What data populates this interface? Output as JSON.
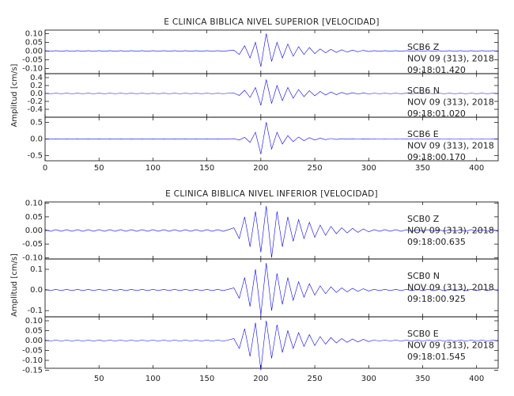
{
  "chart_data": [
    {
      "type": "line",
      "title": "E CLINICA BIBLICA NIVEL SUPERIOR [VELOCIDAD]",
      "ylabel": "Amplitud [cm/s]",
      "xlim": [
        0,
        420
      ],
      "xticks": [
        0,
        50,
        100,
        150,
        200,
        250,
        300,
        350,
        400
      ],
      "x": [
        0,
        5,
        10,
        15,
        20,
        25,
        30,
        35,
        40,
        45,
        50,
        55,
        60,
        65,
        70,
        75,
        80,
        85,
        90,
        95,
        100,
        105,
        110,
        115,
        120,
        125,
        130,
        135,
        140,
        145,
        150,
        155,
        160,
        165,
        170,
        175,
        180,
        185,
        190,
        195,
        200,
        205,
        210,
        215,
        220,
        225,
        230,
        235,
        240,
        245,
        250,
        255,
        260,
        265,
        270,
        275,
        280,
        285,
        290,
        295,
        300,
        305,
        310,
        315,
        320,
        325,
        330,
        335,
        340,
        345,
        350,
        355,
        360,
        365,
        370,
        375,
        380,
        385,
        390,
        395,
        400,
        405,
        410,
        415,
        420
      ],
      "panels": [
        {
          "ylim": [
            -0.13,
            0.12
          ],
          "yticks": [
            {
              "value": 0.1,
              "label": "0.10"
            },
            0.05,
            {
              "value": 0,
              "label": "0.00"
            },
            -0.05,
            {
              "value": -0.1,
              "label": "-0.10"
            }
          ],
          "annotations": [
            "SCB6   Z",
            "NOV 09 (313), 2018",
            "09:18:01.420"
          ],
          "series": [
            {
              "color": "#0000ff",
              "values": [
                0.002,
                -0.002,
                0.002,
                -0.002,
                0.002,
                -0.002,
                0.002,
                -0.002,
                0.002,
                -0.002,
                0.002,
                -0.002,
                0.002,
                -0.002,
                0.002,
                -0.002,
                0.002,
                -0.002,
                0.002,
                -0.002,
                0.002,
                -0.002,
                0.002,
                -0.002,
                0.002,
                -0.002,
                0.002,
                -0.002,
                0.002,
                -0.002,
                0.002,
                -0.002,
                0.002,
                -0.002,
                0.002,
                0.005,
                -0.02,
                0.03,
                -0.04,
                0.05,
                -0.09,
                0.1,
                -0.06,
                0.05,
                -0.04,
                0.04,
                -0.03,
                0.025,
                -0.02,
                0.02,
                -0.015,
                0.012,
                -0.01,
                0.01,
                -0.008,
                0.007,
                -0.006,
                0.005,
                -0.004,
                0.004,
                -0.003,
                0.002,
                -0.002,
                0.002,
                -0.002,
                0.002,
                -0.002,
                0.002,
                -0.002,
                0.002,
                -0.002,
                0.002,
                -0.002,
                0.002,
                -0.002,
                0.002,
                -0.002,
                0.002,
                -0.002,
                0.002,
                -0.002,
                0.002,
                -0.002,
                0.002,
                -0.002
              ]
            }
          ]
        },
        {
          "ylim": [
            -0.6,
            0.5
          ],
          "yticks": [
            0.4,
            0.2,
            {
              "value": 0,
              "label": "0.0"
            },
            -0.2,
            -0.4
          ],
          "annotations": [
            "SCB6   N",
            "NOV 09 (313), 2018",
            "09:18:01.020"
          ],
          "series": [
            {
              "color": "#0000ff",
              "values": [
                0.005,
                -0.005,
                0.005,
                -0.005,
                0.005,
                -0.005,
                0.005,
                -0.005,
                0.005,
                -0.005,
                0.005,
                -0.005,
                0.005,
                -0.005,
                0.005,
                -0.005,
                0.005,
                -0.005,
                0.005,
                -0.005,
                0.005,
                -0.005,
                0.005,
                -0.005,
                0.005,
                -0.005,
                0.005,
                -0.005,
                0.005,
                -0.005,
                0.005,
                -0.005,
                0.005,
                -0.005,
                0.005,
                0.01,
                -0.05,
                0.08,
                -0.1,
                0.15,
                -0.3,
                0.35,
                -0.25,
                0.2,
                -0.18,
                0.15,
                -0.12,
                0.1,
                -0.08,
                0.07,
                -0.06,
                0.05,
                -0.04,
                0.035,
                -0.03,
                0.025,
                -0.02,
                0.018,
                -0.015,
                0.012,
                -0.01,
                0.005,
                -0.005,
                0.005,
                -0.005,
                0.005,
                -0.005,
                0.005,
                -0.005,
                0.005,
                -0.005,
                0.005,
                -0.005,
                0.005,
                -0.005,
                0.005,
                -0.005,
                0.005,
                -0.005,
                0.005,
                -0.005,
                0.005,
                -0.005,
                0.005,
                -0.005
              ]
            }
          ]
        },
        {
          "ylim": [
            -0.65,
            0.65
          ],
          "yticks": [
            0.5,
            {
              "value": 0,
              "label": "0.0"
            },
            -0.5
          ],
          "annotations": [
            "SCB6   E",
            "NOV 09 (313), 2018",
            "09:18:00.170"
          ],
          "series": [
            {
              "color": "#0000ff",
              "values": [
                0.005,
                -0.005,
                0.005,
                -0.005,
                0.005,
                -0.005,
                0.005,
                -0.005,
                0.005,
                -0.005,
                0.005,
                -0.005,
                0.005,
                -0.005,
                0.005,
                -0.005,
                0.005,
                -0.005,
                0.005,
                -0.005,
                0.005,
                -0.005,
                0.005,
                -0.005,
                0.005,
                -0.005,
                0.005,
                -0.005,
                0.005,
                -0.005,
                0.005,
                -0.005,
                0.005,
                -0.005,
                0.005,
                0.01,
                -0.03,
                0.05,
                -0.1,
                0.2,
                -0.45,
                0.5,
                -0.3,
                0.2,
                -0.15,
                0.1,
                -0.08,
                0.06,
                -0.05,
                0.04,
                -0.03,
                0.025,
                -0.02,
                0.015,
                -0.012,
                0.01,
                -0.008,
                0.007,
                -0.006,
                0.005,
                -0.005,
                0.003,
                -0.003,
                0.003,
                -0.003,
                0.003,
                -0.003,
                0.003,
                -0.003,
                0.003,
                -0.003,
                0.003,
                -0.003,
                0.003,
                -0.003,
                0.003,
                -0.003,
                0.003,
                -0.003,
                0.003,
                -0.003,
                0.003,
                -0.003,
                0.003,
                -0.003
              ]
            }
          ]
        }
      ]
    },
    {
      "type": "line",
      "title": "E CLINICA BIBLICA NIVEL INFERIOR [VELOCIDAD]",
      "ylabel": "Amplitud [cm/s]",
      "xlim": [
        0,
        420
      ],
      "xticks": [
        50,
        100,
        150,
        200,
        250,
        300,
        350,
        400
      ],
      "x": [
        0,
        5,
        10,
        15,
        20,
        25,
        30,
        35,
        40,
        45,
        50,
        55,
        60,
        65,
        70,
        75,
        80,
        85,
        90,
        95,
        100,
        105,
        110,
        115,
        120,
        125,
        130,
        135,
        140,
        145,
        150,
        155,
        160,
        165,
        170,
        175,
        180,
        185,
        190,
        195,
        200,
        205,
        210,
        215,
        220,
        225,
        230,
        235,
        240,
        245,
        250,
        255,
        260,
        265,
        270,
        275,
        280,
        285,
        290,
        295,
        300,
        305,
        310,
        315,
        320,
        325,
        330,
        335,
        340,
        345,
        350,
        355,
        360,
        365,
        370,
        375,
        380,
        385,
        390,
        395,
        400,
        405,
        410,
        415,
        420
      ],
      "panels": [
        {
          "ylim": [
            -0.105,
            0.105
          ],
          "yticks": [
            {
              "value": 0.1,
              "label": "0.10"
            },
            0.05,
            {
              "value": 0,
              "label": "0.00"
            },
            -0.05,
            {
              "value": -0.1,
              "label": "-0.10"
            }
          ],
          "annotations": [
            "SCB0   Z",
            "NOV 09 (313), 2018",
            "09:18:00.635"
          ],
          "series": [
            {
              "color": "#0000ff",
              "values": [
                0.003,
                -0.003,
                0.003,
                -0.003,
                0.003,
                -0.003,
                0.003,
                -0.003,
                0.003,
                -0.003,
                0.003,
                -0.003,
                0.003,
                -0.003,
                0.003,
                -0.003,
                0.003,
                -0.003,
                0.003,
                -0.003,
                0.003,
                -0.003,
                0.003,
                -0.003,
                0.003,
                -0.003,
                0.003,
                -0.003,
                0.003,
                -0.003,
                0.003,
                -0.003,
                0.003,
                -0.003,
                0.003,
                0.01,
                -0.03,
                0.05,
                -0.06,
                0.07,
                -0.08,
                0.09,
                -0.1,
                0.07,
                -0.06,
                0.05,
                -0.04,
                0.04,
                -0.03,
                0.03,
                -0.025,
                0.02,
                -0.018,
                0.015,
                -0.012,
                0.01,
                -0.009,
                0.008,
                -0.007,
                0.006,
                -0.005,
                0.003,
                -0.003,
                0.003,
                -0.003,
                0.003,
                -0.003,
                0.003,
                -0.003,
                0.003,
                -0.003,
                0.003,
                -0.003,
                0.003,
                -0.003,
                0.003,
                -0.003,
                0.003,
                -0.003,
                0.003,
                -0.003,
                0.003,
                -0.003,
                0.003,
                -0.003
              ]
            }
          ]
        },
        {
          "ylim": [
            -0.13,
            0.15
          ],
          "yticks": [
            0.1,
            {
              "value": 0,
              "label": "0.0"
            },
            -0.1
          ],
          "annotations": [
            "SCB0   N",
            "NOV 09 (313), 2018",
            "09:18:00.925"
          ],
          "series": [
            {
              "color": "#0000ff",
              "values": [
                0.003,
                -0.003,
                0.003,
                -0.003,
                0.003,
                -0.003,
                0.003,
                -0.003,
                0.003,
                -0.003,
                0.003,
                -0.003,
                0.003,
                -0.003,
                0.003,
                -0.003,
                0.003,
                -0.003,
                0.003,
                -0.003,
                0.003,
                -0.003,
                0.003,
                -0.003,
                0.003,
                -0.003,
                0.003,
                -0.003,
                0.003,
                -0.003,
                0.003,
                -0.003,
                0.003,
                -0.003,
                0.003,
                0.01,
                -0.04,
                0.06,
                -0.08,
                0.1,
                -0.12,
                0.13,
                -0.1,
                0.08,
                -0.07,
                0.06,
                -0.05,
                0.04,
                -0.035,
                0.03,
                -0.025,
                0.02,
                -0.018,
                0.015,
                -0.012,
                0.01,
                -0.009,
                0.008,
                -0.007,
                0.006,
                -0.005,
                0.003,
                -0.003,
                0.003,
                -0.003,
                0.003,
                -0.003,
                0.003,
                -0.003,
                0.003,
                -0.003,
                0.003,
                -0.003,
                0.003,
                -0.003,
                0.003,
                -0.003,
                0.003,
                -0.003,
                0.003,
                -0.003,
                0.003,
                -0.003,
                0.003,
                -0.003
              ]
            }
          ]
        },
        {
          "ylim": [
            -0.14,
            0.12
          ],
          "yticks": [
            {
              "value": 0.1,
              "label": "0.10"
            },
            0.05,
            {
              "value": 0,
              "label": "0.00"
            },
            -0.05,
            {
              "value": -0.1,
              "label": "-0.10"
            },
            -0.15
          ],
          "annotations": [
            "SCB0   E",
            "NOV 09 (313), 2018",
            "09:18:01.545"
          ],
          "series": [
            {
              "color": "#0000ff",
              "values": [
                0.003,
                -0.003,
                0.003,
                -0.003,
                0.003,
                -0.003,
                0.003,
                -0.003,
                0.003,
                -0.003,
                0.003,
                -0.003,
                0.003,
                -0.003,
                0.003,
                -0.003,
                0.003,
                -0.003,
                0.003,
                -0.003,
                0.003,
                -0.003,
                0.003,
                -0.003,
                0.003,
                -0.003,
                0.003,
                -0.003,
                0.003,
                -0.003,
                0.003,
                -0.003,
                0.003,
                -0.003,
                0.003,
                0.01,
                -0.04,
                0.06,
                -0.08,
                0.09,
                -0.15,
                0.1,
                -0.09,
                0.08,
                -0.06,
                0.05,
                -0.04,
                0.04,
                -0.03,
                0.03,
                -0.025,
                0.02,
                -0.018,
                0.015,
                -0.012,
                0.01,
                -0.009,
                0.008,
                -0.007,
                0.006,
                -0.005,
                0.003,
                -0.003,
                0.003,
                -0.003,
                0.003,
                -0.003,
                0.003,
                -0.003,
                0.003,
                -0.003,
                0.003,
                -0.003,
                0.003,
                -0.003,
                0.003,
                -0.003,
                0.003,
                -0.003,
                0.003,
                -0.003,
                0.003,
                -0.003,
                0.003,
                -0.003
              ]
            }
          ]
        }
      ]
    }
  ]
}
